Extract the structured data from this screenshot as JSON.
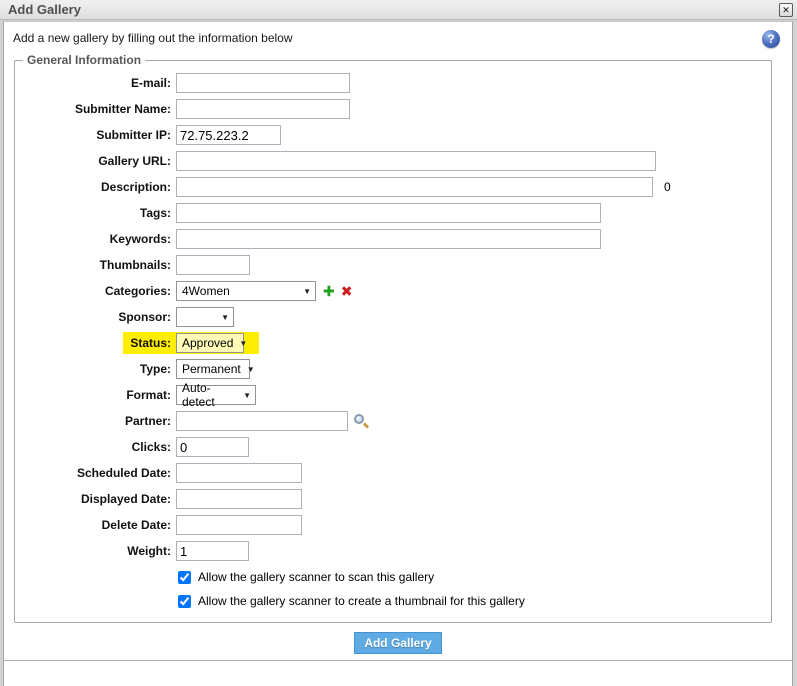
{
  "window": {
    "title": "Add Gallery",
    "close_glyph": "✕",
    "help_glyph": "?"
  },
  "intro": "Add a new gallery by filling out the information below",
  "fieldset_legend": "General Information",
  "form": {
    "fields": {
      "email": {
        "label": "E-mail:",
        "value": ""
      },
      "submitter_name": {
        "label": "Submitter Name:",
        "value": ""
      },
      "submitter_ip": {
        "label": "Submitter IP:",
        "value": "72.75.223.2"
      },
      "gallery_url": {
        "label": "Gallery URL:",
        "value": ""
      },
      "description": {
        "label": "Description:",
        "value": "",
        "counter": "0"
      },
      "tags": {
        "label": "Tags:",
        "value": ""
      },
      "keywords": {
        "label": "Keywords:",
        "value": ""
      },
      "thumbnails": {
        "label": "Thumbnails:",
        "value": ""
      },
      "categories": {
        "label": "Categories:",
        "value": "4Women"
      },
      "sponsor": {
        "label": "Sponsor:",
        "value": ""
      },
      "status": {
        "label": "Status:",
        "value": "Approved"
      },
      "type": {
        "label": "Type:",
        "value": "Permanent"
      },
      "format": {
        "label": "Format:",
        "value": "Auto-detect"
      },
      "partner": {
        "label": "Partner:",
        "value": ""
      },
      "clicks": {
        "label": "Clicks:",
        "value": "0"
      },
      "scheduled_date": {
        "label": "Scheduled Date:",
        "value": ""
      },
      "displayed_date": {
        "label": "Displayed Date:",
        "value": ""
      },
      "delete_date": {
        "label": "Delete Date:",
        "value": ""
      },
      "weight": {
        "label": "Weight:",
        "value": "1"
      }
    },
    "dropdown_arrow_glyph": "▼",
    "add_category_glyph": "✚",
    "remove_category_glyph": "✖",
    "checkboxes": [
      {
        "label": "Allow the gallery scanner to scan this gallery",
        "checked": "checked"
      },
      {
        "label": "Allow the gallery scanner to create a thumbnail for this gallery",
        "checked": "checked"
      }
    ],
    "submit_label": "Add Gallery"
  },
  "colors": {
    "highlight": "#ffee00",
    "button": "#5fabe4"
  }
}
